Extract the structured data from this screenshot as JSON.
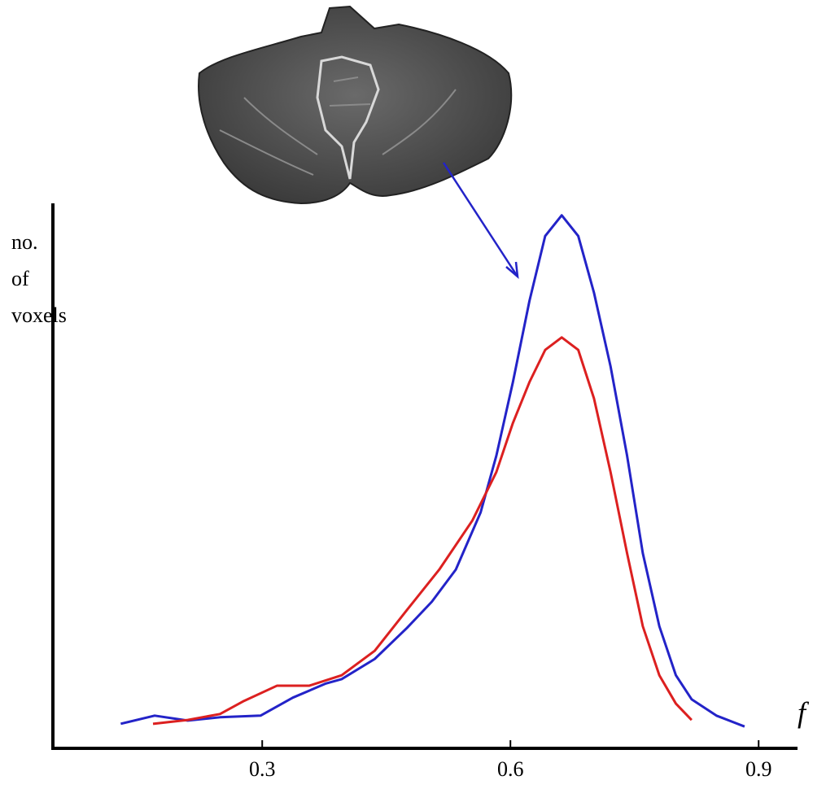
{
  "chart_data": {
    "type": "line",
    "ylabel": [
      "no.",
      "of",
      "voxels"
    ],
    "xlabel": "f",
    "xlim": [
      0.047,
      0.947
    ],
    "xticks": [
      0.3,
      0.6,
      0.9
    ],
    "ylim": [
      0,
      100
    ],
    "series": [
      {
        "color": "#2323c8",
        "x": [
          0.129,
          0.17,
          0.21,
          0.249,
          0.298,
          0.337,
          0.377,
          0.396,
          0.436,
          0.475,
          0.505,
          0.534,
          0.564,
          0.583,
          0.603,
          0.623,
          0.642,
          0.662,
          0.682,
          0.701,
          0.721,
          0.741,
          0.76,
          0.78,
          0.8,
          0.819,
          0.849,
          0.883
        ],
        "values": [
          4.5,
          6.0,
          5.1,
          5.7,
          6.0,
          9.3,
          11.9,
          12.7,
          16.4,
          22.1,
          26.9,
          32.8,
          43.3,
          53.7,
          67.2,
          82.1,
          94.0,
          97.8,
          94.0,
          83.6,
          70.1,
          53.7,
          35.8,
          22.4,
          13.4,
          9.0,
          6.0,
          4.0
        ]
      },
      {
        "color": "#dc2020",
        "x": [
          0.168,
          0.21,
          0.249,
          0.278,
          0.318,
          0.357,
          0.396,
          0.436,
          0.475,
          0.514,
          0.554,
          0.583,
          0.603,
          0.623,
          0.642,
          0.662,
          0.682,
          0.701,
          0.721,
          0.741,
          0.76,
          0.78,
          0.8,
          0.819
        ],
        "values": [
          4.5,
          5.2,
          6.3,
          8.7,
          11.5,
          11.5,
          13.4,
          17.9,
          25.4,
          32.8,
          41.8,
          50.7,
          59.7,
          67.2,
          73.1,
          75.4,
          73.1,
          64.2,
          50.7,
          35.8,
          22.4,
          13.4,
          8.2,
          5.2
        ]
      }
    ]
  }
}
